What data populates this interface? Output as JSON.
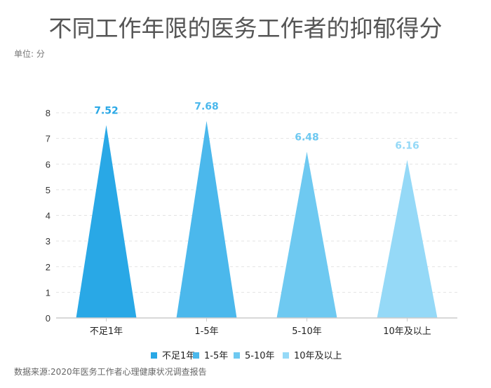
{
  "title": "不同工作年限的医务工作者的抑郁得分",
  "unit": "单位: 分",
  "source": "数据来源:2020年医务工作者心理健康状况调查报告",
  "chart_data": {
    "type": "bar",
    "bar_shape": "triangle",
    "categories": [
      "不足1年",
      "1-5年",
      "5-10年",
      "10年及以上"
    ],
    "values": [
      7.52,
      7.68,
      6.48,
      6.16
    ],
    "data_labels": [
      "7.52",
      "7.68",
      "6.48",
      "6.16"
    ],
    "colors": [
      "#29a8e6",
      "#4bb8ec",
      "#6ec9f1",
      "#95d9f7"
    ],
    "ylim": [
      0,
      8
    ],
    "yticks": [
      0,
      1,
      2,
      3,
      4,
      5,
      6,
      7,
      8
    ],
    "grid": true,
    "legend": "bottom",
    "legend_entries": [
      "不足1年",
      "1-5年",
      "5-10年",
      "10年及以上"
    ]
  }
}
